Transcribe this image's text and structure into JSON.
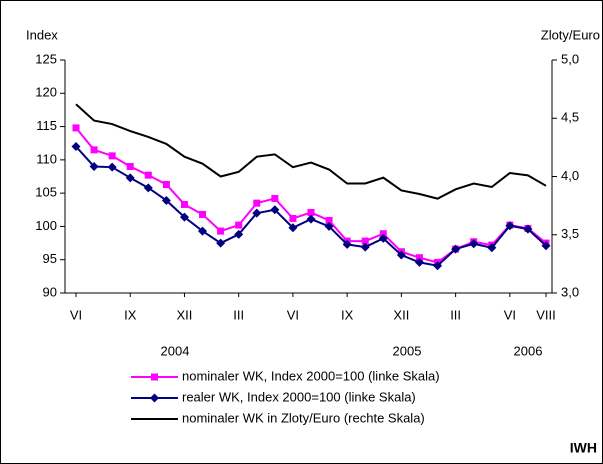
{
  "chart_data": {
    "type": "line",
    "y_axis_label": "Index",
    "y2_axis_label": "Zloty/Euro",
    "source": "IWH",
    "categories": [
      "VI",
      null,
      null,
      "IX",
      null,
      null,
      "XII",
      null,
      null,
      "III",
      null,
      null,
      "VI",
      null,
      null,
      "IX",
      null,
      null,
      "XII",
      null,
      null,
      "III",
      null,
      null,
      "VI",
      null,
      "VIII"
    ],
    "year_labels": [
      "2004",
      "2005",
      "2006"
    ],
    "series": [
      {
        "name": "nominaler WK, Index 2000=100 (linke Skala)",
        "color": "#ff00ff",
        "marker": "square",
        "values": [
          114.8,
          111.5,
          110.6,
          109.0,
          107.7,
          106.3,
          103.3,
          101.8,
          99.3,
          100.2,
          103.5,
          104.2,
          101.2,
          102.1,
          100.9,
          97.8,
          97.8,
          98.9,
          96.2,
          95.3,
          94.6,
          96.6,
          97.7,
          97.2,
          100.2,
          99.7,
          97.5
        ]
      },
      {
        "name": "realer WK, Index 2000=100 (linke Skala)",
        "color": "#000080",
        "marker": "diamond",
        "values": [
          112.0,
          109.0,
          108.9,
          107.3,
          105.8,
          103.9,
          101.4,
          99.3,
          97.5,
          98.8,
          102.0,
          102.5,
          99.8,
          101.1,
          100.0,
          97.3,
          96.9,
          98.2,
          95.7,
          94.6,
          94.1,
          96.6,
          97.4,
          96.8,
          100.1,
          99.6,
          97.1
        ]
      },
      {
        "name": "nominaler WK in Zloty/Euro  (rechte Skala)",
        "color": "#000000",
        "marker": "none",
        "axis": "y2",
        "values": [
          4.62,
          4.48,
          4.45,
          4.39,
          4.34,
          4.28,
          4.17,
          4.11,
          4.0,
          4.04,
          4.17,
          4.19,
          4.08,
          4.12,
          4.06,
          3.94,
          3.94,
          3.99,
          3.88,
          3.85,
          3.81,
          3.89,
          3.94,
          3.91,
          4.03,
          4.01,
          3.92
        ]
      }
    ],
    "ylim": [
      90,
      125
    ],
    "yticks": [
      90,
      95,
      100,
      105,
      110,
      115,
      120,
      125
    ],
    "y2lim": [
      3.0,
      5.0
    ],
    "y2ticks": [
      {
        "value": 3.0,
        "label": "3,0"
      },
      {
        "value": 3.5,
        "label": "3,5"
      },
      {
        "value": 4.0,
        "label": "4,0"
      },
      {
        "value": 4.5,
        "label": "4,5"
      },
      {
        "value": 5.0,
        "label": "5,0"
      }
    ],
    "grid": false
  }
}
